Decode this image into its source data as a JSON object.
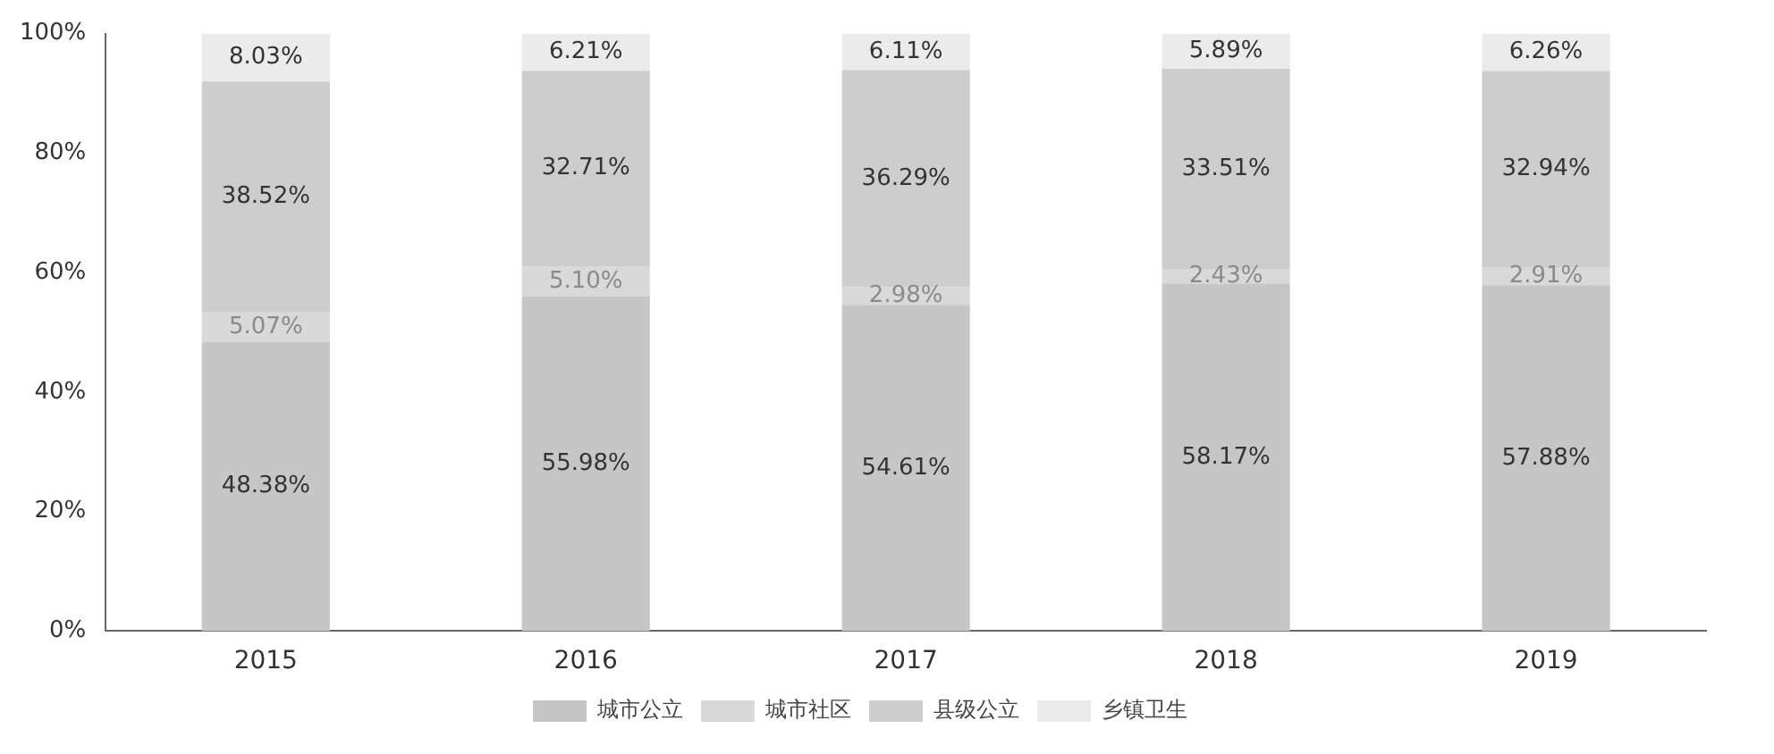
{
  "chart_data": {
    "type": "bar",
    "stacked": true,
    "categories": [
      "2015",
      "2016",
      "2017",
      "2018",
      "2019"
    ],
    "series": [
      {
        "name": "城市公立",
        "color": "#c6c6c6",
        "values": [
          48.38,
          55.98,
          54.61,
          58.17,
          57.88
        ],
        "value_labels": [
          "48.38%",
          "55.98%",
          "54.61%",
          "58.17%",
          "57.88%"
        ]
      },
      {
        "name": "城市社区",
        "color": "#d9d9d9",
        "values": [
          5.07,
          5.1,
          2.98,
          2.43,
          2.91
        ],
        "value_labels": [
          "5.07%",
          "5.10%",
          "2.98%",
          "2.43%",
          "2.91%"
        ]
      },
      {
        "name": "县级公立",
        "color": "#cdcdcd",
        "values": [
          38.52,
          32.71,
          36.29,
          33.51,
          32.94
        ],
        "value_labels": [
          "38.52%",
          "32.71%",
          "36.29%",
          "33.51%",
          "32.94%"
        ]
      },
      {
        "name": "乡镇卫生",
        "color": "#ebebeb",
        "values": [
          8.03,
          6.21,
          6.11,
          5.89,
          6.26
        ],
        "value_labels": [
          "8.03%",
          "6.21%",
          "6.11%",
          "5.89%",
          "6.26%"
        ]
      }
    ],
    "ylim": [
      0,
      100
    ],
    "yticks": [
      {
        "value": 0,
        "label": "0%"
      },
      {
        "value": 20,
        "label": "20%"
      },
      {
        "value": 40,
        "label": "40%"
      },
      {
        "value": 60,
        "label": "60%"
      },
      {
        "value": 80,
        "label": "80%"
      },
      {
        "value": 100,
        "label": "100%"
      }
    ],
    "grid": false,
    "legend": "bottom"
  }
}
